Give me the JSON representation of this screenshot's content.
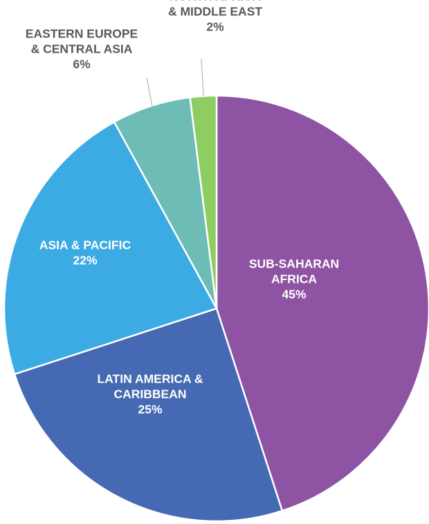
{
  "chart_data": {
    "type": "pie",
    "start_angle_deg": 0,
    "direction": "clockwise",
    "slices": [
      {
        "label_lines": [
          "SUB-SAHARAN",
          "AFRICA"
        ],
        "value_label": "45%",
        "value": 45,
        "color": "#8e54a3",
        "label_color": "#ffffff",
        "label_placement": "inside"
      },
      {
        "label_lines": [
          "LATIN AMERICA &",
          "CARIBBEAN"
        ],
        "value_label": "25%",
        "value": 25,
        "color": "#4569b2",
        "label_color": "#ffffff",
        "label_placement": "inside"
      },
      {
        "label_lines": [
          "ASIA & PACIFIC"
        ],
        "value_label": "22%",
        "value": 22,
        "color": "#3dabe3",
        "label_color": "#ffffff",
        "label_placement": "inside"
      },
      {
        "label_lines": [
          "EASTERN EUROPE",
          "& CENTRAL ASIA"
        ],
        "value_label": "6%",
        "value": 6,
        "color": "#6dbcb6",
        "label_color": "#595959",
        "label_placement": "outside"
      },
      {
        "label_lines": [
          "NORTH AFRICA",
          "& MIDDLE EAST"
        ],
        "value_label": "2%",
        "value": 2,
        "color": "#8ecd62",
        "label_color": "#595959",
        "label_placement": "outside"
      }
    ]
  }
}
